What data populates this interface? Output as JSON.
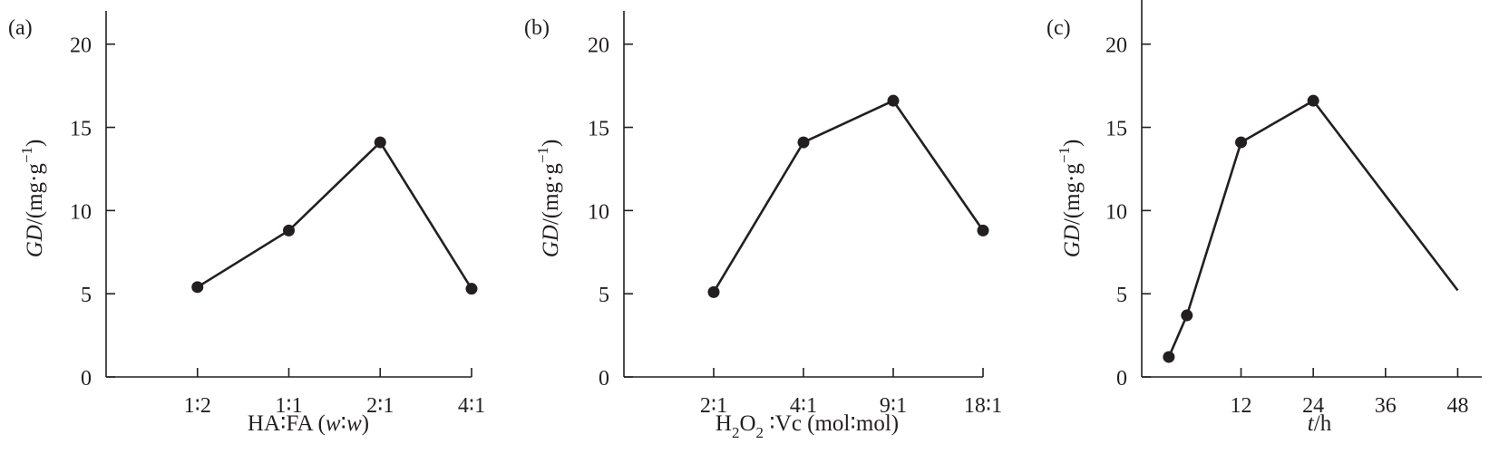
{
  "chart_data": [
    {
      "type": "line",
      "panel_label": "(a)",
      "ylabel": {
        "main": "GD/(mg·g",
        "sup": "−1",
        "close": ")"
      },
      "xlabel": [
        {
          "text": "HA",
          "style": "normal"
        },
        {
          "text": "∶",
          "style": "colon"
        },
        {
          "text": "FA (",
          "style": "normal"
        },
        {
          "text": "w",
          "style": "italic"
        },
        {
          "text": "∶",
          "style": "colon"
        },
        {
          "text": "w",
          "style": "italic"
        },
        {
          "text": ")",
          "style": "normal"
        }
      ],
      "ylim": [
        0,
        22
      ],
      "yticks": [
        0,
        5,
        10,
        15,
        20
      ],
      "xlim": [
        0,
        4
      ],
      "x_ticks": [
        1,
        2,
        3,
        4
      ],
      "x_tick_labels": [
        "1∶2",
        "1∶1",
        "2∶1",
        "4∶1"
      ],
      "categories": [
        "1∶2",
        "1∶1",
        "2∶1",
        "4∶1"
      ],
      "x": [
        1,
        2,
        3,
        4
      ],
      "values": [
        5.4,
        8.8,
        14.1,
        5.3
      ],
      "markers": true
    },
    {
      "type": "line",
      "panel_label": "(b)",
      "ylabel": {
        "main": "GD/(mg·g",
        "sup": "−1",
        "close": ")"
      },
      "xlabel": [
        {
          "text": "H",
          "style": "normal"
        },
        {
          "text": "2",
          "style": "sub"
        },
        {
          "text": "O",
          "style": "normal"
        },
        {
          "text": "2",
          "style": "sub"
        },
        {
          "text": " ∶",
          "style": "colon"
        },
        {
          "text": "Vc (mol",
          "style": "normal"
        },
        {
          "text": "∶",
          "style": "colon"
        },
        {
          "text": "mol)",
          "style": "normal"
        }
      ],
      "ylim": [
        0,
        22
      ],
      "yticks": [
        0,
        5,
        10,
        15,
        20
      ],
      "xlim": [
        0,
        4
      ],
      "x_ticks": [
        1,
        2,
        3,
        4
      ],
      "x_tick_labels": [
        "2∶1",
        "4∶1",
        "9∶1",
        "18∶1"
      ],
      "categories": [
        "2∶1",
        "4∶1",
        "9∶1",
        "18∶1"
      ],
      "x": [
        1,
        2,
        3,
        4
      ],
      "values": [
        5.1,
        14.1,
        16.6,
        8.8
      ],
      "markers": true
    },
    {
      "type": "line",
      "panel_label": "(c)",
      "ylabel": {
        "main": "GD/(mg·g",
        "sup": "−1",
        "close": ")"
      },
      "xlabel": [
        {
          "text": "t",
          "style": "italic"
        },
        {
          "text": "/h",
          "style": "normal"
        }
      ],
      "ylim": [
        0,
        22
      ],
      "yticks": [
        0,
        5,
        10,
        15,
        20
      ],
      "xlim": [
        -4.5,
        52
      ],
      "x_ticks": [
        12,
        24,
        36,
        48
      ],
      "x_tick_labels": [
        "12",
        "24",
        "36",
        "48"
      ],
      "x": [
        0,
        3,
        12,
        24,
        48
      ],
      "values": [
        1.2,
        3.7,
        14.1,
        16.6,
        5.2
      ],
      "marker_flags": [
        true,
        true,
        true,
        true,
        false
      ]
    }
  ]
}
